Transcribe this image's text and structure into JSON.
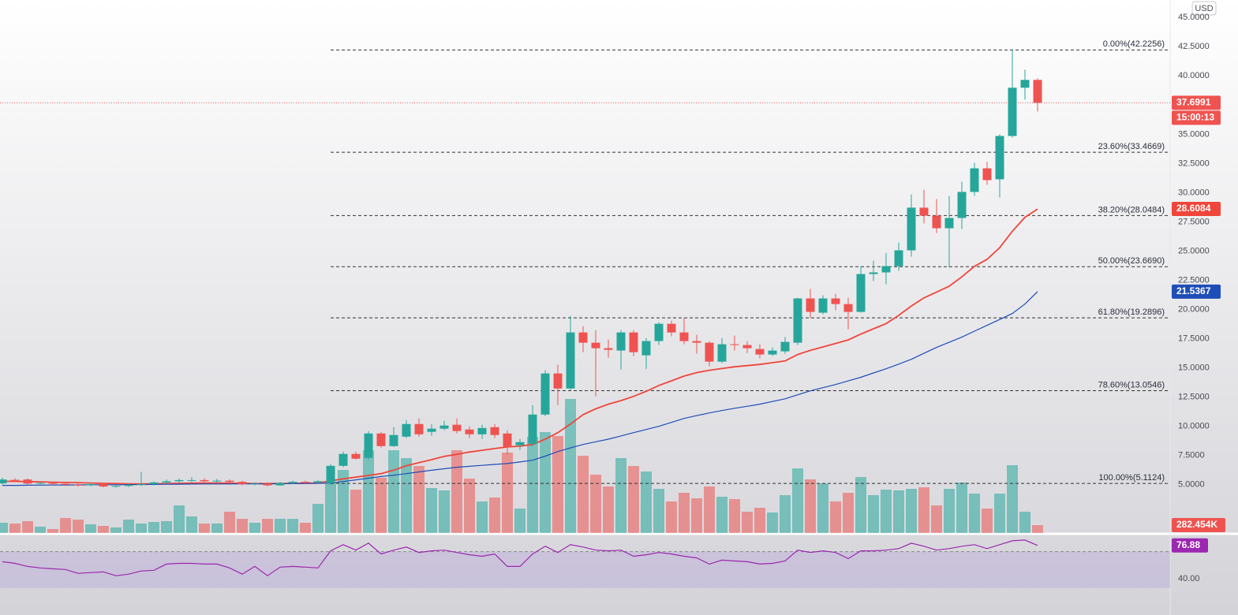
{
  "header": {
    "currency": "USD"
  },
  "chart_data": {
    "type": "candlestick",
    "up_color": "#26a69a",
    "down_color": "#ef5350",
    "ylim": [
      0.87,
      46.5
    ],
    "yticks": [
      {
        "value": 5,
        "label": "5.0000"
      },
      {
        "value": 7.5,
        "label": "7.5000"
      },
      {
        "value": 10,
        "label": "10.0000"
      },
      {
        "value": 12.5,
        "label": "12.5000"
      },
      {
        "value": 15,
        "label": "15.0000"
      },
      {
        "value": 17.5,
        "label": "17.5000"
      },
      {
        "value": 20,
        "label": "20.0000"
      },
      {
        "value": 22.5,
        "label": "22.5000"
      },
      {
        "value": 25,
        "label": "25.0000"
      },
      {
        "value": 27.5,
        "label": "27.5000"
      },
      {
        "value": 30,
        "label": "30.0000"
      },
      {
        "value": 32.5,
        "label": "32.5000"
      },
      {
        "value": 35,
        "label": "35.0000"
      },
      {
        "value": 37.5,
        "label": "37.5000"
      },
      {
        "value": 40,
        "label": "40.0000"
      },
      {
        "value": 42.5,
        "label": "42.5000"
      },
      {
        "value": 45,
        "label": "45.0000"
      }
    ],
    "open": [
      5.12,
      5.42,
      5.45,
      5.12,
      5.15,
      5.08,
      5.0,
      4.95,
      5.05,
      4.85,
      4.9,
      5.0,
      5.05,
      5.2,
      5.3,
      5.35,
      5.4,
      5.3,
      5.35,
      5.25,
      5.05,
      5.1,
      4.95,
      5.15,
      5.25,
      5.2,
      5.14,
      6.62,
      7.64,
      7.3,
      9.39,
      8.31,
      9.12,
      10.2,
      9.53,
      9.8,
      10.14,
      9.73,
      9.32,
      9.93,
      9.39,
      8.38,
      8.51,
      11.01,
      14.53,
      13.24,
      18.04,
      17.16,
      16.69,
      16.49,
      18.04,
      16.08,
      17.3,
      18.78,
      18.04,
      17.3,
      17.16,
      15.54,
      17.03,
      16.96,
      16.62,
      16.15,
      16.42,
      17.16,
      20.95,
      19.73,
      20.95,
      20.47,
      19.8,
      23.04,
      23.18,
      23.72,
      25.07,
      28.72,
      28.04,
      26.96,
      27.84,
      30.07,
      32.09,
      31.15,
      34.86,
      38.99,
      39.66
    ],
    "high": [
      5.6,
      5.55,
      5.55,
      5.25,
      5.25,
      5.2,
      5.1,
      5.15,
      5.15,
      5.0,
      5.1,
      6.1,
      5.3,
      5.45,
      5.55,
      5.65,
      5.55,
      5.5,
      5.45,
      5.35,
      5.2,
      5.2,
      5.25,
      5.35,
      5.35,
      5.4,
      6.76,
      7.84,
      7.84,
      9.59,
      9.53,
      9.93,
      10.54,
      10.68,
      10.2,
      10.47,
      10.68,
      10.0,
      10.14,
      10.2,
      9.66,
      8.92,
      11.82,
      14.8,
      15.27,
      19.46,
      18.58,
      18.24,
      17.43,
      18.24,
      18.24,
      17.57,
      18.92,
      19.05,
      19.26,
      17.84,
      17.3,
      17.57,
      17.77,
      17.3,
      17.03,
      16.76,
      17.64,
      21.01,
      21.76,
      21.22,
      21.35,
      21.01,
      23.72,
      24.19,
      24.86,
      25.74,
      29.86,
      30.27,
      29.46,
      29.73,
      30.95,
      32.57,
      32.64,
      35.0,
      42.2256,
      40.54,
      39.8
    ],
    "low": [
      5.02,
      5.25,
      5.0,
      5.02,
      4.98,
      4.9,
      4.85,
      4.85,
      4.78,
      4.75,
      4.8,
      4.9,
      4.95,
      5.1,
      5.2,
      5.25,
      5.2,
      5.2,
      5.15,
      4.95,
      4.95,
      4.85,
      4.9,
      5.05,
      5.1,
      5.1,
      5.0,
      6.49,
      7.16,
      7.16,
      8.18,
      8.24,
      8.99,
      9.12,
      9.19,
      9.66,
      9.39,
      8.99,
      8.92,
      8.99,
      7.64,
      7.97,
      8.31,
      10.88,
      11.82,
      13.11,
      16.35,
      12.57,
      15.88,
      14.86,
      16.01,
      14.93,
      16.96,
      17.7,
      17.03,
      16.22,
      15.14,
      15.41,
      16.49,
      16.28,
      15.81,
      16.01,
      16.22,
      16.96,
      19.26,
      19.59,
      19.93,
      18.31,
      19.73,
      22.43,
      22.16,
      23.31,
      24.53,
      27.36,
      26.55,
      23.58,
      26.89,
      29.73,
      30.68,
      29.59,
      34.73,
      37.97,
      36.95
    ],
    "close": [
      5.45,
      5.35,
      5.1,
      5.15,
      5.08,
      5.0,
      4.95,
      5.05,
      4.85,
      4.9,
      5.0,
      5.05,
      5.2,
      5.3,
      5.4,
      5.4,
      5.3,
      5.35,
      5.25,
      5.05,
      5.1,
      4.95,
      5.15,
      5.25,
      5.2,
      5.3,
      6.62,
      7.64,
      7.23,
      9.39,
      8.31,
      9.26,
      10.2,
      9.32,
      9.8,
      10.07,
      9.6,
      9.32,
      9.86,
      9.26,
      8.24,
      8.65,
      11.01,
      14.53,
      13.24,
      18.04,
      17.16,
      16.69,
      16.55,
      18.04,
      16.35,
      17.3,
      18.78,
      18.04,
      17.3,
      17.16,
      15.54,
      17.03,
      16.96,
      16.69,
      16.15,
      16.49,
      17.23,
      20.95,
      19.8,
      20.95,
      20.47,
      19.8,
      23.04,
      23.18,
      23.72,
      25.07,
      28.72,
      28.04,
      26.96,
      27.84,
      30.07,
      32.09,
      31.08,
      34.86,
      38.99,
      39.66,
      37.6991
    ],
    "countdown": "15:00:13",
    "current_price_color": "#ef5350",
    "fib_levels": [
      {
        "value": 42.2256,
        "label": "0.00%(42.2256)"
      },
      {
        "value": 33.4669,
        "label": "23.60%(33.4669)"
      },
      {
        "value": 28.0484,
        "label": "38.20%(28.0484)"
      },
      {
        "value": 23.669,
        "label": "50.00%(23.6690)"
      },
      {
        "value": 19.2896,
        "label": "61.80%(19.2896)"
      },
      {
        "value": 13.0546,
        "label": "78.60%(13.0546)"
      },
      {
        "value": 5.1124,
        "label": "100.00%(5.1124)"
      }
    ],
    "series": [
      {
        "color": "#f0453a",
        "values": [
          5.3,
          5.29,
          5.27,
          5.25,
          5.22,
          5.2,
          5.18,
          5.15,
          5.12,
          5.1,
          5.08,
          5.07,
          5.08,
          5.1,
          5.12,
          5.14,
          5.15,
          5.15,
          5.14,
          5.12,
          5.1,
          5.1,
          5.11,
          5.12,
          5.13,
          5.14,
          5.34,
          5.5,
          5.65,
          5.8,
          5.95,
          6.25,
          6.62,
          6.9,
          7.15,
          7.43,
          7.6,
          7.8,
          7.95,
          8.1,
          8.24,
          8.3,
          8.45,
          8.9,
          9.46,
          10.2,
          11.0,
          11.5,
          11.9,
          12.2,
          12.57,
          13.0,
          13.5,
          13.9,
          14.3,
          14.6,
          14.8,
          14.95,
          15.1,
          15.2,
          15.3,
          15.45,
          15.6,
          16.15,
          16.5,
          16.8,
          17.1,
          17.4,
          17.9,
          18.35,
          18.8,
          19.5,
          20.3,
          21.0,
          21.5,
          22.0,
          22.8,
          23.7,
          24.3,
          25.3,
          26.7,
          27.9,
          28.6084
        ]
      },
      {
        "color": "#1e4db7",
        "values": [
          4.95,
          4.95,
          4.96,
          4.97,
          4.98,
          4.98,
          4.99,
          5.0,
          5.0,
          5.0,
          5.01,
          5.02,
          5.03,
          5.04,
          5.05,
          5.06,
          5.07,
          5.07,
          5.07,
          5.08,
          5.08,
          5.08,
          5.09,
          5.1,
          5.11,
          5.12,
          5.14,
          5.28,
          5.42,
          5.56,
          5.7,
          5.82,
          5.95,
          6.1,
          6.24,
          6.37,
          6.5,
          6.58,
          6.66,
          6.74,
          6.82,
          6.95,
          7.1,
          7.45,
          7.84,
          8.15,
          8.45,
          8.68,
          8.9,
          9.18,
          9.46,
          9.73,
          10.0,
          10.34,
          10.68,
          10.92,
          11.15,
          11.35,
          11.55,
          11.72,
          11.9,
          12.13,
          12.36,
          12.7,
          13.04,
          13.31,
          13.58,
          13.89,
          14.2,
          14.57,
          14.93,
          15.33,
          15.74,
          16.25,
          16.76,
          17.2,
          17.64,
          18.15,
          18.65,
          19.15,
          19.66,
          20.47,
          21.5367
        ]
      }
    ],
    "volume": {
      "values": [
        367000,
        339000,
        424000,
        226000,
        141000,
        537000,
        480000,
        311000,
        254000,
        198000,
        480000,
        339000,
        395000,
        424000,
        989000,
        593000,
        339000,
        339000,
        763000,
        508000,
        367000,
        508000,
        508000,
        508000,
        367000,
        1045000,
        1836000,
        2260000,
        1553000,
        2966000,
        1977000,
        2966000,
        2683000,
        2401000,
        1610000,
        1525000,
        2966000,
        1949000,
        1130000,
        1271000,
        2881000,
        876000,
        3446000,
        3615000,
        3474000,
        4802000,
        2768000,
        2090000,
        1666000,
        2683000,
        2401000,
        2203000,
        1582000,
        1130000,
        1440000,
        1243000,
        1666000,
        1299000,
        1215000,
        763000,
        904000,
        734000,
        1356000,
        2316000,
        1921000,
        1779000,
        1130000,
        1440000,
        2005000,
        1356000,
        1553000,
        1525000,
        1582000,
        1638000,
        989000,
        1582000,
        1808000,
        1412000,
        876000,
        1412000,
        2429000,
        763000,
        282454
      ],
      "last_label": "282.454K"
    },
    "rsi": {
      "color": "#9c27b0",
      "ylim": [
        0,
        88
      ],
      "yticks": [
        {
          "value": 40,
          "label": "40.00"
        }
      ],
      "band": [
        30,
        70
      ],
      "values": [
        58.9,
        57.1,
        53.7,
        52.0,
        51.1,
        50.3,
        46.0,
        46.9,
        47.7,
        43.4,
        45.1,
        48.6,
        49.4,
        56.3,
        57.1,
        57.1,
        56.3,
        56.3,
        52.0,
        45.1,
        53.7,
        43.4,
        52.9,
        53.7,
        52.9,
        52.0,
        70.9,
        77.7,
        71.7,
        79.4,
        67.4,
        71.7,
        75.1,
        69.1,
        70.9,
        71.7,
        69.1,
        66.6,
        64.9,
        67.4,
        53.7,
        53.7,
        67.4,
        76.0,
        69.1,
        77.7,
        75.1,
        71.7,
        70.9,
        71.7,
        64.9,
        66.6,
        69.1,
        67.4,
        64.9,
        63.1,
        56.3,
        60.6,
        59.7,
        58.9,
        56.3,
        57.1,
        59.7,
        71.7,
        69.1,
        70.9,
        69.1,
        62.3,
        70.9,
        70.9,
        71.7,
        73.4,
        79.4,
        76.0,
        71.7,
        73.4,
        76.0,
        77.7,
        73.4,
        77.7,
        82.0,
        82.9,
        76.88
      ]
    }
  }
}
